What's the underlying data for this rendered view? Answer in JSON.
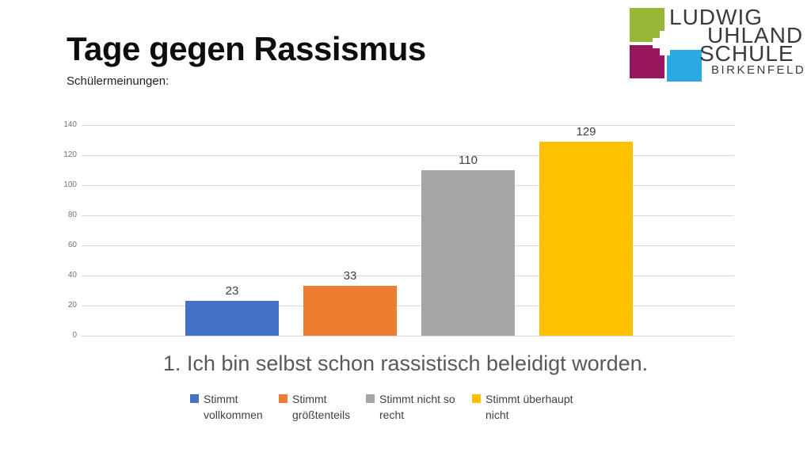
{
  "slide": {
    "title": "Tage gegen Rassismus",
    "subtitle": "Schülermeinungen:"
  },
  "logo": {
    "lines": [
      "LUDWIG",
      "UHLAND",
      "SCHULE"
    ],
    "subline": "BIRKENFELD",
    "text_color": "#3b3b3b",
    "square_colors": {
      "green": "#97B837",
      "magenta": "#99165F",
      "blue": "#2BA9E0"
    }
  },
  "chart_data": {
    "type": "bar",
    "title": "1. Ich bin selbst schon rassistisch beleidigt worden.",
    "categories": [
      "Stimmt vollkommen",
      "Stimmt größtenteils",
      "Stimmt nicht so recht",
      "Stimmt überhaupt nicht"
    ],
    "values": [
      23,
      33,
      110,
      129
    ],
    "bar_colors": [
      "#4472C4",
      "#ED7D31",
      "#A5A5A5",
      "#FFC000"
    ],
    "xlabel": "",
    "ylabel": "",
    "ylim": [
      0,
      140
    ],
    "yticks": [
      0,
      20,
      40,
      60,
      80,
      100,
      120,
      140
    ],
    "grid": true,
    "data_labels": true,
    "legend_position": "bottom",
    "gridline_color": "#d9d9d9",
    "tick_color": "#737373",
    "label_color": "#404040"
  }
}
